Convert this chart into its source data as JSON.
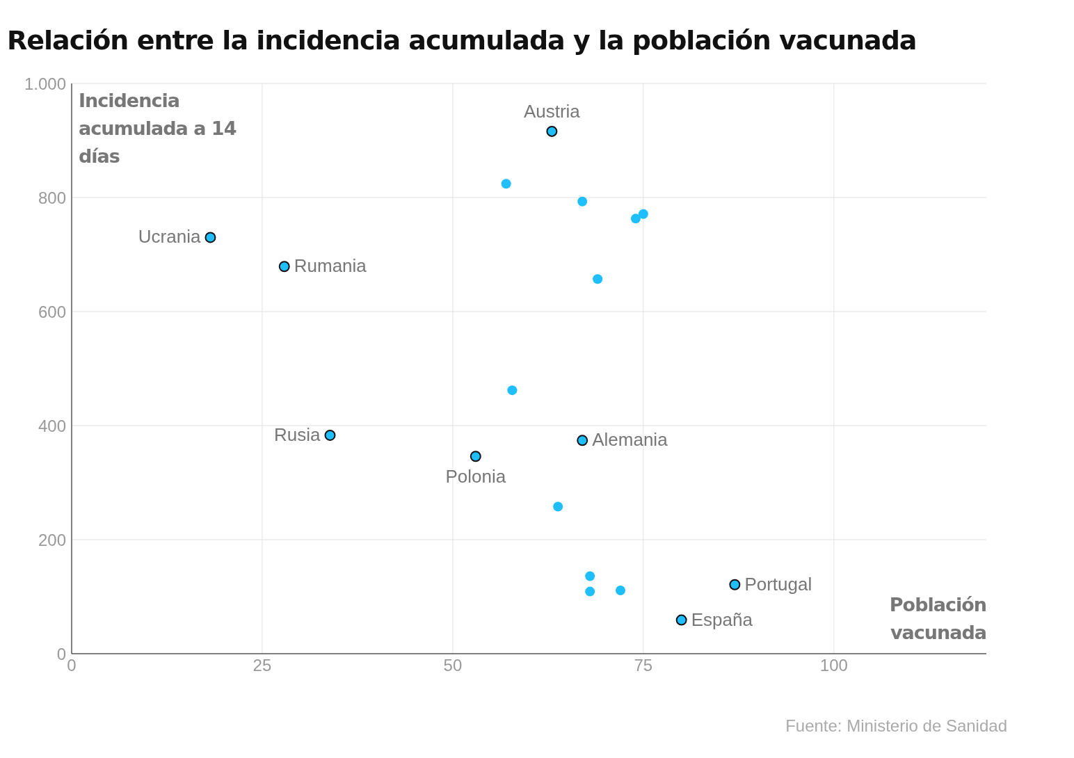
{
  "chart_data": {
    "type": "scatter",
    "title": "Relación entre la incidencia acumulada y la población vacunada",
    "xlabel": "Población vacunada",
    "ylabel": "Incidencia acumulada a 14 días",
    "series": [
      {
        "color": "#1fbfff",
        "x": [
          63,
          18.2,
          27.9,
          33.9,
          67,
          53,
          87,
          80
        ],
        "values": [
          916,
          730,
          679,
          383,
          374,
          346,
          121,
          59
        ]
      },
      {
        "color": "#1fbfff",
        "x": [
          57,
          67,
          74,
          75,
          69,
          57.8,
          63.8,
          68,
          68,
          72
        ],
        "values": [
          824,
          793,
          763,
          771,
          657,
          462,
          258,
          136,
          109,
          111
        ]
      }
    ],
    "annotations": [
      {
        "text": "Austria",
        "x": 63,
        "y": 916
      },
      {
        "text": "Ucrania",
        "x": 18.2,
        "y": 730
      },
      {
        "text": "Rumania",
        "x": 27.9,
        "y": 679
      },
      {
        "text": "Rusia",
        "x": 33.9,
        "y": 383
      },
      {
        "text": "Alemania",
        "x": 67,
        "y": 374
      },
      {
        "text": "Polonia",
        "x": 53,
        "y": 346
      },
      {
        "text": "Portugal",
        "x": 87,
        "y": 121
      },
      {
        "text": "España",
        "x": 80,
        "y": 59
      },
      "Fuente: Ministerio de Sanidad"
    ],
    "xlim": [
      0,
      120
    ],
    "xticks": [
      0,
      25,
      50,
      75,
      100
    ],
    "ylim": [
      0,
      1000
    ],
    "yticks": [
      0,
      200,
      400,
      600,
      800,
      {
        "value": 1000,
        "label": "1.000"
      }
    ],
    "grid": true,
    "marker": "circle"
  }
}
